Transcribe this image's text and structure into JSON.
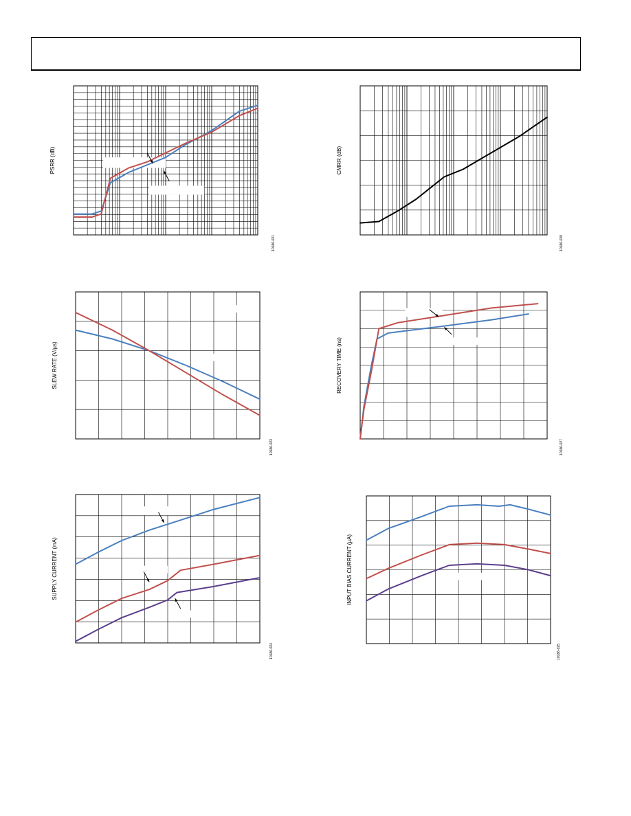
{
  "colors": {
    "blue": "#4a7fbf",
    "red": "#c0504d",
    "purple": "#5b3f8c",
    "black": "#000000"
  },
  "charts": [
    {
      "id": "psrr",
      "chart_data": {
        "type": "line",
        "ylabel": "PSRR (dB)",
        "figure_id": "10186-021",
        "xscale": "log",
        "xlim": [
          0,
          1
        ],
        "ylim": [
          0,
          1
        ],
        "grid": "log-x / linear-y",
        "series": [
          {
            "color": "blue",
            "points": [
              [
                0,
                0.14
              ],
              [
                0.1,
                0.14
              ],
              [
                0.15,
                0.16
              ],
              [
                0.2,
                0.35
              ],
              [
                0.3,
                0.42
              ],
              [
                0.4,
                0.47
              ],
              [
                0.5,
                0.52
              ],
              [
                0.6,
                0.6
              ],
              [
                0.75,
                0.7
              ],
              [
                0.9,
                0.83
              ],
              [
                1.0,
                0.87
              ]
            ]
          },
          {
            "color": "red",
            "points": [
              [
                0,
                0.12
              ],
              [
                0.1,
                0.12
              ],
              [
                0.15,
                0.14
              ],
              [
                0.2,
                0.38
              ],
              [
                0.3,
                0.45
              ],
              [
                0.4,
                0.49
              ],
              [
                0.5,
                0.55
              ],
              [
                0.6,
                0.61
              ],
              [
                0.75,
                0.69
              ],
              [
                0.9,
                0.8
              ],
              [
                1.0,
                0.85
              ]
            ]
          }
        ]
      }
    },
    {
      "id": "cmrr",
      "chart_data": {
        "type": "line",
        "ylabel": "CMRR (dB)",
        "figure_id": "10186-020",
        "xscale": "log",
        "xlim": [
          0,
          1
        ],
        "ylim": [
          0,
          1
        ],
        "series": [
          {
            "color": "black",
            "points": [
              [
                0,
                0.08
              ],
              [
                0.1,
                0.09
              ],
              [
                0.2,
                0.16
              ],
              [
                0.3,
                0.24
              ],
              [
                0.4,
                0.34
              ],
              [
                0.45,
                0.39
              ],
              [
                0.55,
                0.44
              ],
              [
                0.7,
                0.55
              ],
              [
                0.85,
                0.66
              ],
              [
                1.0,
                0.79
              ]
            ]
          }
        ]
      }
    },
    {
      "id": "slew",
      "chart_data": {
        "type": "line",
        "ylabel": "SLEW RATE (V/µs)",
        "figure_id": "10186-023",
        "xlim": [
          0,
          1
        ],
        "ylim": [
          0,
          1
        ],
        "series": [
          {
            "color": "blue",
            "points": [
              [
                0,
                0.74
              ],
              [
                0.2,
                0.68
              ],
              [
                0.4,
                0.6
              ],
              [
                0.6,
                0.5
              ],
              [
                0.8,
                0.39
              ],
              [
                1.0,
                0.27
              ]
            ]
          },
          {
            "color": "red",
            "points": [
              [
                0,
                0.86
              ],
              [
                0.2,
                0.74
              ],
              [
                0.4,
                0.6
              ],
              [
                0.6,
                0.45
              ],
              [
                0.8,
                0.3
              ],
              [
                1.0,
                0.16
              ]
            ]
          }
        ]
      }
    },
    {
      "id": "recovery",
      "chart_data": {
        "type": "line",
        "ylabel": "RECOVERY TIME (ns)",
        "figure_id": "10186-027",
        "xlim": [
          0,
          1
        ],
        "ylim": [
          0,
          1
        ],
        "series": [
          {
            "color": "blue",
            "points": [
              [
                0,
                0.0
              ],
              [
                0.02,
                0.22
              ],
              [
                0.06,
                0.5
              ],
              [
                0.09,
                0.68
              ],
              [
                0.15,
                0.72
              ],
              [
                0.4,
                0.76
              ],
              [
                0.7,
                0.81
              ],
              [
                0.9,
                0.85
              ]
            ]
          },
          {
            "color": "red",
            "points": [
              [
                0,
                0.0
              ],
              [
                0.02,
                0.2
              ],
              [
                0.06,
                0.46
              ],
              [
                0.1,
                0.75
              ],
              [
                0.2,
                0.79
              ],
              [
                0.45,
                0.84
              ],
              [
                0.7,
                0.89
              ],
              [
                0.95,
                0.92
              ]
            ]
          }
        ]
      }
    },
    {
      "id": "supply",
      "chart_data": {
        "type": "line",
        "ylabel": "SUPPLY CURRENT (mA)",
        "figure_id": "10186-024",
        "xlim": [
          0,
          1
        ],
        "ylim": [
          0,
          1
        ],
        "series": [
          {
            "color": "blue",
            "points": [
              [
                0,
                0.53
              ],
              [
                0.12,
                0.61
              ],
              [
                0.25,
                0.69
              ],
              [
                0.4,
                0.76
              ],
              [
                0.55,
                0.82
              ],
              [
                0.75,
                0.9
              ],
              [
                1.0,
                0.98
              ]
            ]
          },
          {
            "color": "red",
            "points": [
              [
                0,
                0.14
              ],
              [
                0.12,
                0.22
              ],
              [
                0.25,
                0.3
              ],
              [
                0.4,
                0.36
              ],
              [
                0.5,
                0.42
              ],
              [
                0.57,
                0.49
              ],
              [
                0.75,
                0.53
              ],
              [
                1.0,
                0.59
              ]
            ]
          },
          {
            "color": "purple",
            "points": [
              [
                0,
                0.01
              ],
              [
                0.12,
                0.09
              ],
              [
                0.25,
                0.17
              ],
              [
                0.4,
                0.24
              ],
              [
                0.5,
                0.29
              ],
              [
                0.55,
                0.34
              ],
              [
                0.75,
                0.38
              ],
              [
                1.0,
                0.44
              ]
            ]
          }
        ]
      }
    },
    {
      "id": "bias",
      "chart_data": {
        "type": "line",
        "ylabel": "INPUT BIAS CURRENT (µA)",
        "figure_id": "10186-025",
        "xlim": [
          0,
          1
        ],
        "ylim": [
          0,
          1
        ],
        "series": [
          {
            "color": "blue",
            "points": [
              [
                0,
                0.7
              ],
              [
                0.12,
                0.78
              ],
              [
                0.3,
                0.86
              ],
              [
                0.45,
                0.93
              ],
              [
                0.6,
                0.94
              ],
              [
                0.72,
                0.93
              ],
              [
                0.78,
                0.94
              ],
              [
                0.88,
                0.91
              ],
              [
                1.0,
                0.87
              ]
            ]
          },
          {
            "color": "red",
            "points": [
              [
                0,
                0.44
              ],
              [
                0.12,
                0.51
              ],
              [
                0.3,
                0.6
              ],
              [
                0.45,
                0.67
              ],
              [
                0.6,
                0.68
              ],
              [
                0.75,
                0.67
              ],
              [
                0.88,
                0.64
              ],
              [
                1.0,
                0.61
              ]
            ]
          },
          {
            "color": "purple",
            "points": [
              [
                0,
                0.29
              ],
              [
                0.12,
                0.37
              ],
              [
                0.3,
                0.46
              ],
              [
                0.45,
                0.53
              ],
              [
                0.6,
                0.54
              ],
              [
                0.75,
                0.53
              ],
              [
                0.88,
                0.5
              ],
              [
                1.0,
                0.46
              ]
            ]
          }
        ]
      }
    }
  ]
}
